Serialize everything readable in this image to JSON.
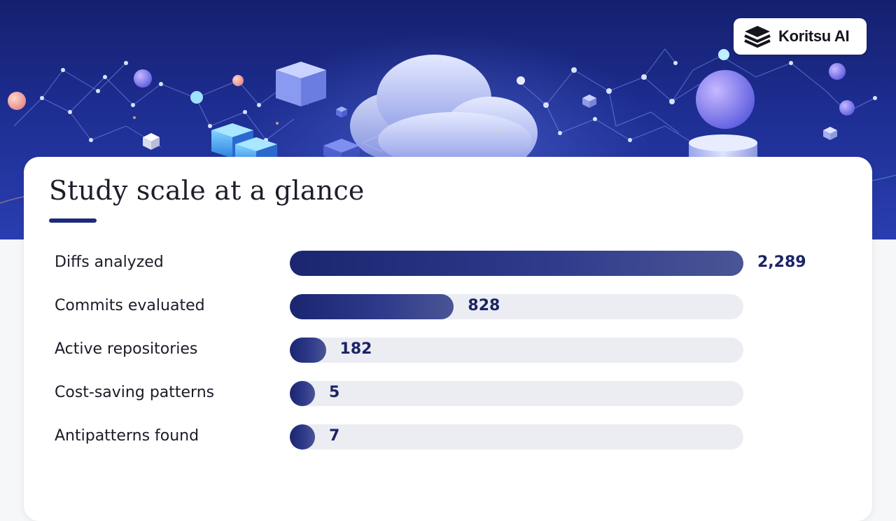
{
  "brand": {
    "name": "Koritsu AI",
    "icon": "layers-stack-icon"
  },
  "colors": {
    "accent": "#1d2a7a",
    "bar_start": "#1b2670",
    "bar_end": "#4a5596",
    "track": "#ebedf3",
    "banner_top": "#15206e",
    "banner_bottom": "#2a3eb0"
  },
  "chart_data": {
    "type": "bar",
    "orientation": "horizontal",
    "title": "Study scale at a glance",
    "categories": [
      "Diffs analyzed",
      "Commits evaluated",
      "Active repositories",
      "Cost-saving patterns",
      "Antipatterns found"
    ],
    "values": [
      2289,
      828,
      182,
      5,
      7
    ],
    "value_labels": [
      "2,289",
      "828",
      "182",
      "5",
      "7"
    ],
    "xlim": [
      0,
      2289
    ],
    "grid": false,
    "legend": "none"
  }
}
